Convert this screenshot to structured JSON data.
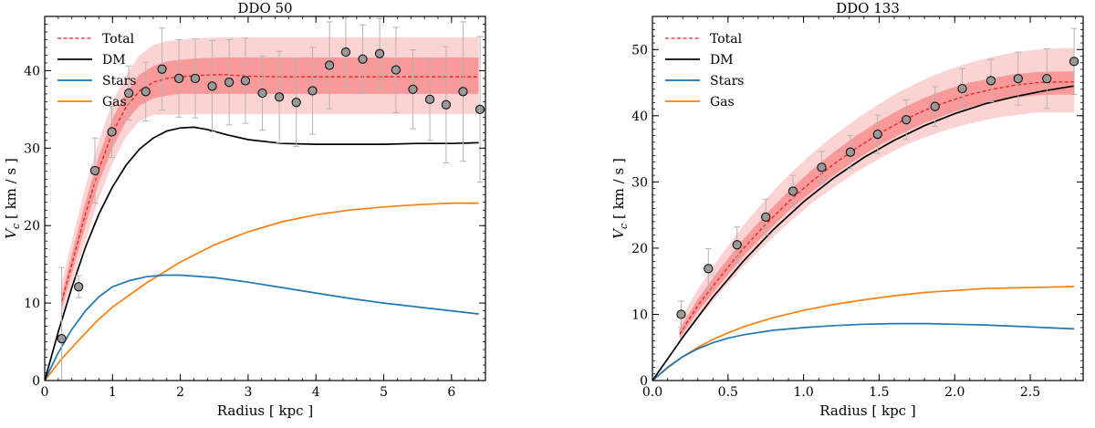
{
  "colors": {
    "total": "#e8221c",
    "dm": "#000000",
    "stars": "#1f77b4",
    "gas": "#ff7f0e",
    "band_outer": "#fcd3d3",
    "band_inner": "#f89a9a",
    "points": "#999999",
    "errorbar": "#b3b3b3"
  },
  "legend": [
    "Total",
    "DM",
    "Stars",
    "Gas"
  ],
  "chart_data": [
    {
      "type": "line",
      "title": "DDO 50",
      "xlabel": "Radius [ kpc ]",
      "ylabel": "V_c [ km / s ]",
      "ylabel_main": "V",
      "ylabel_sub": "c",
      "ylabel_rest": " [ km / s ]",
      "xlim": [
        0,
        6.5
      ],
      "ylim": [
        0,
        47
      ],
      "xticks": [
        0,
        1,
        2,
        3,
        4,
        5,
        6
      ],
      "yticks": [
        0,
        10,
        20,
        30,
        40
      ],
      "legend_position": "top-left",
      "series": [
        {
          "name": "Total",
          "style": "dashed",
          "x": [
            0.25,
            0.4,
            0.6,
            0.8,
            1.0,
            1.2,
            1.4,
            1.6,
            1.8,
            2.0,
            2.3,
            2.6,
            3.0,
            3.5,
            4.0,
            4.5,
            5.0,
            5.5,
            6.0,
            6.4
          ],
          "y": [
            10.2,
            15.0,
            21.5,
            27.3,
            32.0,
            35.3,
            37.4,
            38.5,
            39.0,
            39.2,
            39.4,
            39.5,
            39.3,
            39.2,
            39.2,
            39.2,
            39.2,
            39.2,
            39.2,
            39.2
          ]
        },
        {
          "name": "DM",
          "style": "solid",
          "x": [
            0.0,
            0.2,
            0.4,
            0.6,
            0.8,
            1.0,
            1.2,
            1.4,
            1.6,
            1.8,
            2.0,
            2.2,
            2.4,
            2.7,
            3.0,
            3.5,
            4.0,
            4.5,
            5.0,
            5.5,
            6.0,
            6.4
          ],
          "y": [
            0.0,
            6.3,
            12.0,
            17.2,
            21.5,
            25.0,
            27.8,
            29.9,
            31.3,
            32.2,
            32.6,
            32.7,
            32.4,
            31.7,
            31.1,
            30.6,
            30.5,
            30.5,
            30.5,
            30.6,
            30.6,
            30.7
          ]
        },
        {
          "name": "Stars",
          "style": "solid",
          "x": [
            0.0,
            0.2,
            0.4,
            0.6,
            0.8,
            1.0,
            1.25,
            1.5,
            1.75,
            2.0,
            2.5,
            3.0,
            3.5,
            4.0,
            4.5,
            5.0,
            5.5,
            6.0,
            6.4
          ],
          "y": [
            0.0,
            3.6,
            6.6,
            9.0,
            10.8,
            12.1,
            12.9,
            13.4,
            13.6,
            13.6,
            13.3,
            12.7,
            12.0,
            11.3,
            10.6,
            10.0,
            9.5,
            9.0,
            8.6
          ]
        },
        {
          "name": "Gas",
          "style": "solid",
          "x": [
            0.0,
            0.25,
            0.5,
            0.75,
            1.0,
            1.5,
            2.0,
            2.5,
            3.0,
            3.5,
            4.0,
            4.5,
            5.0,
            5.5,
            6.0,
            6.4
          ],
          "y": [
            0.0,
            2.8,
            5.2,
            7.5,
            9.5,
            12.6,
            15.3,
            17.5,
            19.2,
            20.5,
            21.4,
            22.0,
            22.4,
            22.7,
            22.9,
            22.9
          ]
        }
      ],
      "band_outer": {
        "x": [
          0.25,
          0.4,
          0.6,
          0.8,
          1.0,
          1.2,
          1.4,
          1.6,
          1.8,
          2.0,
          2.3,
          2.6,
          3.0,
          3.5,
          4.0,
          4.5,
          5.0,
          5.5,
          6.0,
          6.4
        ],
        "upper": [
          12.5,
          18.0,
          25.0,
          31.0,
          36.0,
          39.5,
          42.0,
          43.3,
          43.8,
          44.0,
          44.2,
          44.3,
          44.3,
          44.3,
          44.3,
          44.3,
          44.3,
          44.3,
          44.3,
          44.3
        ],
        "lower": [
          8.5,
          12.5,
          18.0,
          23.5,
          28.0,
          31.5,
          33.5,
          34.3,
          34.3,
          34.3,
          34.4,
          34.4,
          34.4,
          34.4,
          34.4,
          34.4,
          34.4,
          34.4,
          34.4,
          34.4
        ]
      },
      "band_inner": {
        "x": [
          0.25,
          0.4,
          0.6,
          0.8,
          1.0,
          1.2,
          1.4,
          1.6,
          1.8,
          2.0,
          2.3,
          2.6,
          3.0,
          3.5,
          4.0,
          4.5,
          5.0,
          5.5,
          6.0,
          6.4
        ],
        "upper": [
          11.0,
          16.3,
          23.0,
          29.0,
          33.8,
          37.2,
          39.5,
          40.6,
          41.2,
          41.4,
          41.6,
          41.7,
          41.7,
          41.7,
          41.7,
          41.7,
          41.7,
          41.7,
          41.7,
          41.7
        ],
        "lower": [
          9.3,
          13.8,
          20.0,
          25.6,
          30.0,
          33.5,
          35.5,
          36.4,
          36.8,
          37.0,
          37.0,
          37.0,
          37.0,
          37.0,
          37.0,
          37.0,
          37.0,
          37.0,
          37.0,
          37.0
        ]
      },
      "data_points": {
        "x": [
          0.25,
          0.5,
          0.74,
          0.99,
          1.24,
          1.49,
          1.73,
          1.98,
          2.22,
          2.47,
          2.72,
          2.96,
          3.21,
          3.46,
          3.71,
          3.95,
          4.2,
          4.44,
          4.69,
          4.94,
          5.18,
          5.43,
          5.68,
          5.92,
          6.17,
          6.42
        ],
        "y": [
          5.4,
          12.1,
          27.1,
          32.1,
          37.1,
          37.3,
          40.2,
          39.0,
          39.0,
          38.0,
          38.5,
          38.7,
          37.1,
          36.6,
          35.9,
          37.4,
          40.7,
          42.4,
          41.5,
          42.2,
          40.1,
          37.6,
          36.3,
          35.6,
          37.3,
          35.0
        ],
        "err": [
          9.2,
          1.4,
          4.2,
          3.3,
          3.5,
          3.8,
          5.3,
          5.0,
          5.1,
          5.9,
          5.5,
          5.5,
          4.8,
          5.9,
          5.7,
          5.6,
          5.6,
          4.5,
          4.4,
          4.5,
          5.5,
          5.1,
          5.3,
          7.5,
          9.0,
          9.4
        ]
      }
    },
    {
      "type": "line",
      "title": "DDO 133",
      "xlabel": "Radius [ kpc ]",
      "ylabel": "V_c [ km / s ]",
      "ylabel_main": "V",
      "ylabel_sub": "c",
      "ylabel_rest": " [ km / s ]",
      "xlim": [
        0,
        2.85
      ],
      "ylim": [
        0,
        55
      ],
      "xticks": [
        0.0,
        0.5,
        1.0,
        1.5,
        2.0,
        2.5
      ],
      "xtick_labels": [
        "0.0",
        "0.5",
        "1.0",
        "1.5",
        "2.0",
        "2.5"
      ],
      "yticks": [
        0,
        10,
        20,
        30,
        40,
        50
      ],
      "legend_position": "top-left",
      "series": [
        {
          "name": "Total",
          "style": "dashed",
          "x": [
            0.18,
            0.3,
            0.45,
            0.6,
            0.75,
            0.9,
            1.05,
            1.2,
            1.35,
            1.5,
            1.65,
            1.8,
            1.95,
            2.1,
            2.25,
            2.4,
            2.55,
            2.7,
            2.79
          ],
          "y": [
            7.0,
            11.3,
            15.7,
            19.9,
            23.6,
            27.0,
            30.0,
            32.7,
            35.1,
            37.3,
            39.2,
            40.8,
            42.1,
            43.2,
            44.0,
            44.6,
            45.0,
            45.1,
            45.1
          ]
        },
        {
          "name": "DM",
          "style": "solid",
          "x": [
            0.0,
            0.2,
            0.4,
            0.6,
            0.8,
            1.0,
            1.2,
            1.4,
            1.6,
            1.8,
            2.0,
            2.2,
            2.4,
            2.6,
            2.79
          ],
          "y": [
            0.0,
            6.5,
            12.6,
            18.0,
            22.8,
            27.0,
            30.6,
            33.7,
            36.3,
            38.5,
            40.3,
            41.8,
            42.9,
            43.8,
            44.5
          ]
        },
        {
          "name": "Stars",
          "style": "solid",
          "x": [
            0.0,
            0.1,
            0.2,
            0.3,
            0.4,
            0.5,
            0.6,
            0.8,
            1.0,
            1.2,
            1.4,
            1.6,
            1.8,
            2.0,
            2.2,
            2.4,
            2.6,
            2.79
          ],
          "y": [
            0.0,
            2.0,
            3.6,
            4.8,
            5.7,
            6.4,
            6.9,
            7.6,
            8.0,
            8.3,
            8.5,
            8.6,
            8.6,
            8.5,
            8.4,
            8.2,
            8.0,
            7.8
          ]
        },
        {
          "name": "Gas",
          "style": "solid",
          "x": [
            0.0,
            0.1,
            0.2,
            0.3,
            0.4,
            0.5,
            0.6,
            0.8,
            1.0,
            1.2,
            1.4,
            1.6,
            1.8,
            2.0,
            2.2,
            2.4,
            2.6,
            2.79
          ],
          "y": [
            0.0,
            1.9,
            3.6,
            5.0,
            6.2,
            7.2,
            8.1,
            9.5,
            10.6,
            11.5,
            12.2,
            12.8,
            13.3,
            13.6,
            13.9,
            14.0,
            14.1,
            14.2
          ]
        }
      ],
      "band_outer": {
        "x": [
          0.18,
          0.3,
          0.45,
          0.6,
          0.75,
          0.9,
          1.05,
          1.2,
          1.35,
          1.5,
          1.65,
          1.8,
          1.95,
          2.1,
          2.25,
          2.4,
          2.55,
          2.7,
          2.79
        ],
        "upper": [
          9.0,
          13.8,
          18.8,
          23.4,
          27.4,
          31.0,
          34.2,
          37.0,
          39.5,
          41.8,
          43.8,
          45.5,
          46.9,
          48.0,
          48.9,
          49.6,
          50.0,
          50.2,
          50.2
        ],
        "lower": [
          5.8,
          9.3,
          13.3,
          17.2,
          20.6,
          23.8,
          26.7,
          29.2,
          31.5,
          33.5,
          35.3,
          36.7,
          37.9,
          38.8,
          39.6,
          40.1,
          40.5,
          40.5,
          40.5
        ]
      },
      "band_inner": {
        "x": [
          0.18,
          0.3,
          0.45,
          0.6,
          0.75,
          0.9,
          1.05,
          1.2,
          1.35,
          1.5,
          1.65,
          1.8,
          1.95,
          2.1,
          2.25,
          2.4,
          2.55,
          2.7,
          2.79
        ],
        "upper": [
          7.8,
          12.3,
          17.0,
          21.3,
          25.1,
          28.6,
          31.7,
          34.5,
          37.0,
          39.2,
          41.1,
          42.7,
          44.0,
          45.0,
          45.7,
          46.3,
          46.6,
          46.7,
          46.7
        ],
        "lower": [
          6.4,
          10.4,
          14.6,
          18.7,
          22.2,
          25.6,
          28.4,
          31.0,
          33.4,
          35.5,
          37.3,
          38.9,
          40.2,
          41.3,
          42.1,
          42.7,
          43.1,
          43.2,
          43.2
        ]
      },
      "data_points": {
        "x": [
          0.19,
          0.37,
          0.56,
          0.75,
          0.93,
          1.12,
          1.31,
          1.49,
          1.68,
          1.87,
          2.05,
          2.24,
          2.42,
          2.61,
          2.79
        ],
        "y": [
          10.0,
          16.9,
          20.5,
          24.7,
          28.6,
          32.2,
          34.5,
          37.2,
          39.4,
          41.4,
          44.1,
          45.3,
          45.6,
          45.6,
          48.2
        ],
        "err": [
          2.0,
          3.0,
          2.7,
          2.7,
          2.4,
          2.4,
          2.5,
          2.9,
          3.0,
          3.0,
          3.0,
          3.2,
          4.0,
          4.5,
          5.0
        ]
      }
    }
  ]
}
